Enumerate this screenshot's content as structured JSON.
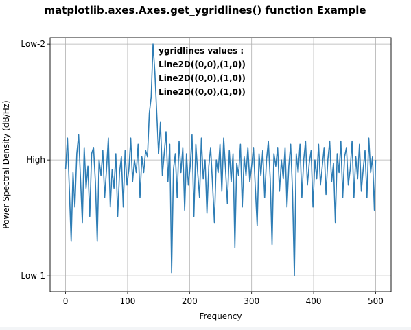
{
  "chart_data": {
    "type": "line",
    "title": "matplotlib.axes.Axes.get_ygridlines() function Example",
    "xlabel": "Frequency",
    "ylabel": "Power Spectral Density (dB/Hz)",
    "xlim": [
      -25,
      525
    ],
    "ylim": [
      -82,
      -1
    ],
    "xticks": [
      0,
      100,
      200,
      300,
      400,
      500
    ],
    "xtick_labels": [
      "0",
      "100",
      "200",
      "300",
      "400",
      "500"
    ],
    "yticks": [
      -77,
      -40,
      -3
    ],
    "ytick_labels": [
      "Low-1",
      "High",
      "Low-2"
    ],
    "grid": true,
    "line_color": "#2e7db5",
    "annotation": {
      "x": 150,
      "y": -6,
      "lines": [
        "ygridlines values :",
        "Line2D((0,0),(1,0))",
        "Line2D((0,0),(1,0))",
        "Line2D((0,0),(1,0))"
      ]
    },
    "series": [
      {
        "x": [
          0,
          3,
          6,
          9,
          12,
          15,
          18,
          21,
          24,
          27,
          30,
          33,
          36,
          39,
          42,
          45,
          48,
          51,
          54,
          57,
          60,
          63,
          66,
          69,
          72,
          75,
          78,
          81,
          84,
          87,
          90,
          93,
          96,
          99,
          102,
          105,
          108,
          111,
          114,
          117,
          120,
          123,
          126,
          129,
          132,
          135,
          138,
          141,
          144,
          147,
          150,
          153,
          156,
          159,
          162,
          165,
          168,
          171,
          174,
          177,
          180,
          183,
          186,
          189,
          192,
          195,
          198,
          201,
          204,
          207,
          210,
          213,
          216,
          219,
          222,
          225,
          228,
          231,
          234,
          237,
          240,
          243,
          246,
          249,
          252,
          255,
          258,
          261,
          264,
          267,
          270,
          273,
          276,
          279,
          282,
          285,
          288,
          291,
          294,
          297,
          300,
          303,
          306,
          309,
          312,
          315,
          318,
          321,
          324,
          327,
          330,
          333,
          336,
          339,
          342,
          345,
          348,
          351,
          354,
          357,
          360,
          363,
          366,
          369,
          372,
          375,
          378,
          381,
          384,
          387,
          390,
          393,
          396,
          399,
          402,
          405,
          408,
          411,
          414,
          417,
          420,
          423,
          426,
          429,
          432,
          435,
          438,
          441,
          444,
          447,
          450,
          453,
          456,
          459,
          462,
          465,
          468,
          471,
          474,
          477,
          480,
          483,
          486,
          489,
          492,
          495,
          498,
          500
        ],
        "y": [
          -43,
          -33,
          -49,
          -66,
          -44,
          -55,
          -38,
          -32,
          -46,
          -60,
          -36,
          -49,
          -42,
          -58,
          -38,
          -36,
          -47,
          -66,
          -40,
          -45,
          -37,
          -52,
          -43,
          -33,
          -55,
          -43,
          -49,
          -38,
          -58,
          -44,
          -39,
          -55,
          -37,
          -48,
          -43,
          -33,
          -47,
          -40,
          -44,
          -35,
          -52,
          -39,
          -44,
          -37,
          -39,
          -25,
          -20,
          -3,
          -12,
          -25,
          -38,
          -28,
          -45,
          -38,
          -31,
          -47,
          -35,
          -76,
          -43,
          -38,
          -52,
          -34,
          -44,
          -36,
          -56,
          -38,
          -48,
          -42,
          -32,
          -58,
          -35,
          -44,
          -52,
          -33,
          -46,
          -40,
          -57,
          -42,
          -36,
          -48,
          -60,
          -40,
          -44,
          -35,
          -50,
          -33,
          -43,
          -54,
          -37,
          -47,
          -38,
          -68,
          -41,
          -45,
          -35,
          -55,
          -39,
          -45,
          -36,
          -47,
          -42,
          -36,
          -49,
          -61,
          -38,
          -45,
          -37,
          -52,
          -40,
          -34,
          -46,
          -67,
          -38,
          -42,
          -36,
          -50,
          -40,
          -46,
          -36,
          -55,
          -42,
          -35,
          -50,
          -77,
          -38,
          -44,
          -35,
          -52,
          -40,
          -34,
          -48,
          -41,
          -37,
          -55,
          -40,
          -46,
          -35,
          -48,
          -42,
          -36,
          -51,
          -40,
          -34,
          -47,
          -41,
          -60,
          -38,
          -44,
          -34,
          -52,
          -39,
          -36,
          -48,
          -43,
          -34,
          -52,
          -39,
          -46,
          -35,
          -50,
          -43,
          -37,
          -52,
          -33,
          -44,
          -39,
          -56,
          -40
        ]
      }
    ]
  }
}
